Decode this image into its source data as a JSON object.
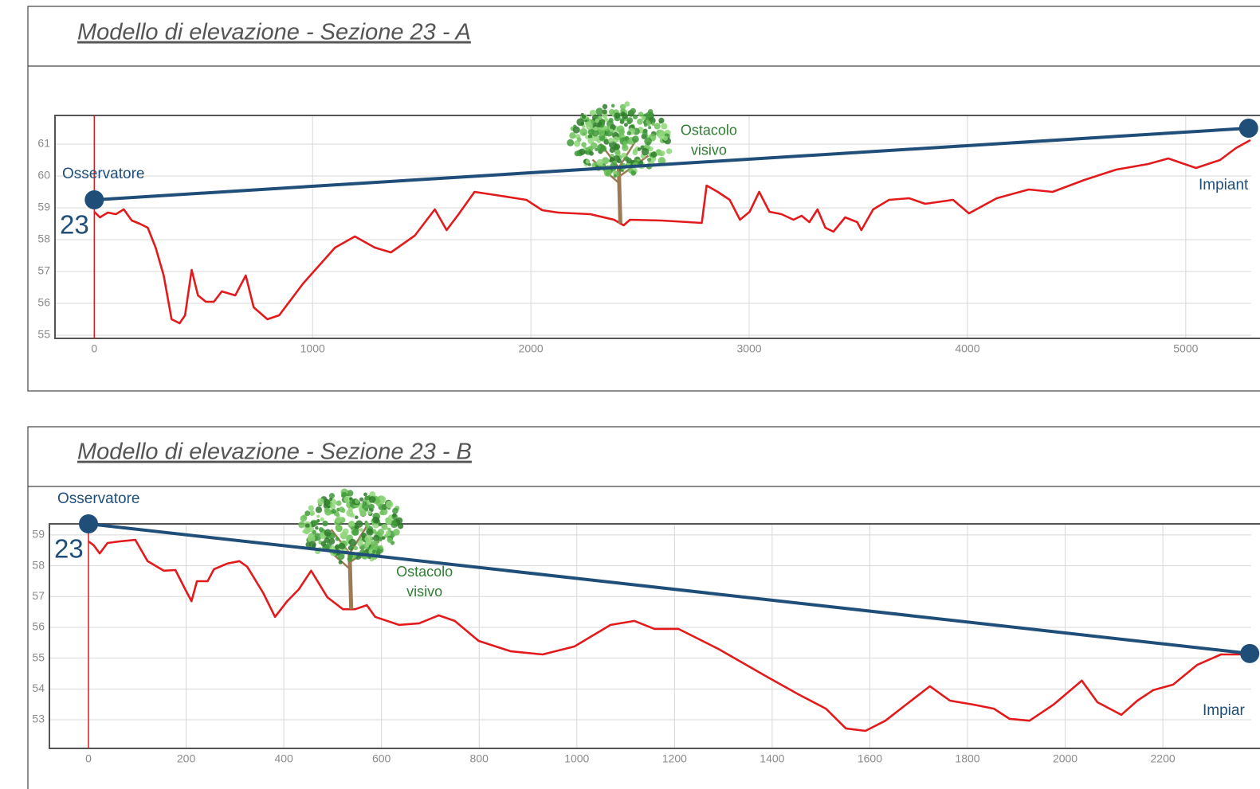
{
  "chart_data": [
    {
      "type": "line",
      "title": "Modello di elevazione - Sezione 23 - A",
      "x": [
        0,
        26,
        62,
        99,
        135,
        172,
        208,
        245,
        281,
        318,
        354,
        391,
        416,
        446,
        475,
        511,
        548,
        584,
        646,
        694,
        730,
        793,
        847,
        957,
        1103,
        1194,
        1285,
        1359,
        1468,
        1560,
        1614,
        1669,
        1742,
        1815,
        1979,
        2052,
        2125,
        2272,
        2381,
        2425,
        2454,
        2600,
        2783,
        2805,
        2856,
        2911,
        2958,
        3002,
        3046,
        3093,
        3148,
        3203,
        3240,
        3276,
        3313,
        3349,
        3386,
        3440,
        3495,
        3514,
        3568,
        3641,
        3733,
        3806,
        3934,
        4007,
        4134,
        4281,
        4390,
        4536,
        4682,
        4828,
        4920,
        5047,
        5157,
        5230,
        5296
      ],
      "series": [
        {
          "color": "#e31a1c",
          "values": [
            58.875,
            58.7,
            58.85,
            58.8,
            58.95,
            58.6,
            58.5,
            58.375,
            57.75,
            56.875,
            55.5,
            55.375,
            55.625,
            57.05,
            56.25,
            56.05,
            56.05,
            56.375,
            56.25,
            56.875,
            55.875,
            55.5,
            55.625,
            56.625,
            57.75,
            58.1,
            57.75,
            57.6,
            58.125,
            58.95,
            58.3,
            58.8,
            59.5,
            59.425,
            59.25,
            58.925,
            58.85,
            58.8,
            58.625,
            58.45,
            58.625,
            58.6,
            58.525,
            59.7,
            59.5,
            59.25,
            58.625,
            58.875,
            59.5,
            58.875,
            58.8,
            58.625,
            58.75,
            58.55,
            58.95,
            58.375,
            58.25,
            58.7,
            58.55,
            58.3,
            58.95,
            59.25,
            59.3,
            59.125,
            59.25,
            58.825,
            59.3,
            59.575,
            59.5,
            59.875,
            60.2,
            60.375,
            60.55,
            60.25,
            60.5,
            60.875,
            61.125
          ]
        }
      ],
      "sight_line": {
        "color": "#1f4e79",
        "x": [
          0,
          5288
        ],
        "values": [
          59.25,
          61.5
        ]
      },
      "observer": {
        "label": "Osservatore",
        "number": "23"
      },
      "target": {
        "label": "Impiant"
      },
      "obstacle": {
        "label": [
          "Ostacolo",
          "visivo"
        ],
        "x": 2410,
        "color": "#2e7d32"
      },
      "xlim": [
        -180,
        5300
      ],
      "ylim": [
        54.9,
        61.9
      ],
      "xticks": [
        0,
        1000,
        2000,
        3000,
        4000,
        5000
      ],
      "yticks": [
        55,
        56,
        57,
        58,
        59,
        60,
        61
      ],
      "grid": true
    },
    {
      "type": "line",
      "title": "Modello di elevazione - Sezione 23 - B",
      "x": [
        0,
        11,
        23,
        39,
        64,
        96,
        121,
        154,
        178,
        198,
        211,
        222,
        244,
        257,
        284,
        309,
        325,
        358,
        382,
        407,
        431,
        456,
        489,
        521,
        546,
        570,
        587,
        636,
        677,
        717,
        750,
        799,
        865,
        930,
        995,
        1069,
        1118,
        1159,
        1208,
        1290,
        1389,
        1453,
        1510,
        1551,
        1591,
        1632,
        1674,
        1723,
        1764,
        1813,
        1854,
        1886,
        1927,
        1976,
        2034,
        2066,
        2115,
        2148,
        2180,
        2221,
        2270,
        2319,
        2381
      ],
      "series": [
        {
          "color": "#e31a1c",
          "values": [
            58.79,
            58.66,
            58.4,
            58.74,
            58.79,
            58.84,
            58.15,
            57.84,
            57.86,
            57.24,
            56.85,
            57.5,
            57.5,
            57.89,
            58.07,
            58.15,
            57.97,
            57.11,
            56.34,
            56.85,
            57.24,
            57.84,
            56.98,
            56.59,
            56.59,
            56.72,
            56.34,
            56.08,
            56.13,
            56.39,
            56.21,
            55.56,
            55.22,
            55.12,
            55.38,
            56.08,
            56.21,
            55.95,
            55.95,
            55.3,
            54.4,
            53.83,
            53.36,
            52.72,
            52.64,
            52.97,
            53.49,
            54.09,
            53.62,
            53.49,
            53.36,
            53.03,
            52.97,
            53.49,
            54.27,
            53.57,
            53.16,
            53.62,
            53.96,
            54.14,
            54.78,
            55.12,
            55.12
          ]
        }
      ],
      "sight_line": {
        "color": "#1f4e79",
        "x": [
          0,
          2378
        ],
        "values": [
          59.36,
          55.15
        ]
      },
      "observer": {
        "label": "Osservatore",
        "number": "23"
      },
      "target": {
        "label": "Impiar"
      },
      "obstacle": {
        "label": [
          "Ostacolo",
          "visivo"
        ],
        "x": 538,
        "color": "#2e7d32"
      },
      "xlim": [
        -80,
        2381
      ],
      "ylim": [
        52.07,
        59.36
      ],
      "xticks": [
        0,
        200,
        400,
        600,
        800,
        1000,
        1200,
        1400,
        1600,
        1800,
        2000,
        2200
      ],
      "yticks": [
        53,
        54,
        55,
        56,
        57,
        58,
        59
      ],
      "grid": true
    }
  ]
}
